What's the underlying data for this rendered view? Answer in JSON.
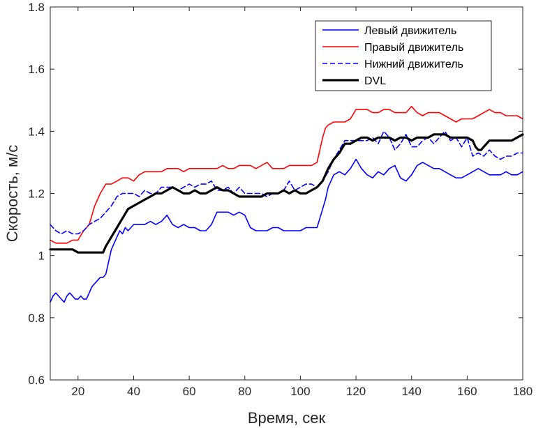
{
  "chart_data": {
    "type": "line",
    "xlabel": "Время, сек",
    "ylabel": "Скорость, м/с",
    "xlim": [
      10,
      180
    ],
    "ylim": [
      0.6,
      1.8
    ],
    "xticks": [
      20,
      40,
      60,
      80,
      100,
      120,
      140,
      160,
      180
    ],
    "yticks": [
      0.6,
      0.8,
      1,
      1.2,
      1.4,
      1.6,
      1.8
    ],
    "ytick_labels": [
      "0.6",
      "0.8",
      "1",
      "1.2",
      "1.4",
      "1.6",
      "1.8"
    ],
    "grid": false,
    "legend_position": "top-right",
    "series": [
      {
        "name": "Левый движитель",
        "color": "#0000ff",
        "style": "solid",
        "x": [
          10,
          11,
          12,
          13,
          14,
          15,
          16,
          17,
          18,
          19,
          20,
          21,
          22,
          23,
          24,
          25,
          26,
          27,
          28,
          29,
          30,
          31,
          32,
          33,
          34,
          35,
          36,
          37,
          38,
          40,
          42,
          44,
          46,
          48,
          50,
          52,
          54,
          56,
          58,
          60,
          62,
          64,
          66,
          68,
          70,
          72,
          74,
          76,
          78,
          80,
          82,
          84,
          86,
          88,
          90,
          92,
          94,
          96,
          98,
          100,
          102,
          104,
          106,
          107,
          108,
          109,
          110,
          112,
          114,
          116,
          118,
          120,
          122,
          124,
          126,
          128,
          130,
          132,
          134,
          136,
          138,
          140,
          142,
          144,
          146,
          148,
          150,
          152,
          154,
          156,
          158,
          160,
          162,
          164,
          166,
          168,
          170,
          172,
          174,
          176,
          178,
          180
        ],
        "y": [
          0.85,
          0.87,
          0.88,
          0.87,
          0.86,
          0.85,
          0.87,
          0.88,
          0.87,
          0.86,
          0.86,
          0.87,
          0.86,
          0.86,
          0.88,
          0.9,
          0.91,
          0.92,
          0.93,
          0.93,
          0.94,
          0.98,
          1.02,
          1.04,
          1.06,
          1.08,
          1.07,
          1.09,
          1.08,
          1.1,
          1.1,
          1.1,
          1.11,
          1.1,
          1.11,
          1.13,
          1.1,
          1.09,
          1.1,
          1.09,
          1.09,
          1.08,
          1.08,
          1.1,
          1.14,
          1.14,
          1.14,
          1.13,
          1.14,
          1.13,
          1.09,
          1.08,
          1.08,
          1.08,
          1.09,
          1.09,
          1.08,
          1.08,
          1.08,
          1.08,
          1.09,
          1.09,
          1.09,
          1.12,
          1.15,
          1.18,
          1.22,
          1.26,
          1.27,
          1.26,
          1.28,
          1.31,
          1.28,
          1.26,
          1.25,
          1.27,
          1.26,
          1.28,
          1.29,
          1.25,
          1.24,
          1.26,
          1.29,
          1.3,
          1.29,
          1.28,
          1.28,
          1.27,
          1.26,
          1.25,
          1.25,
          1.26,
          1.27,
          1.28,
          1.27,
          1.26,
          1.26,
          1.26,
          1.27,
          1.26,
          1.26,
          1.27
        ],
        "note": ""
      },
      {
        "name": "Правый движитель",
        "color": "#ff0000",
        "style": "solid",
        "x": [
          10,
          12,
          14,
          16,
          18,
          20,
          22,
          24,
          26,
          28,
          30,
          32,
          34,
          36,
          38,
          40,
          42,
          44,
          46,
          48,
          50,
          52,
          54,
          56,
          58,
          60,
          62,
          64,
          66,
          68,
          70,
          72,
          74,
          76,
          78,
          80,
          82,
          84,
          86,
          88,
          90,
          92,
          94,
          96,
          98,
          100,
          102,
          104,
          106,
          107,
          108,
          109,
          110,
          112,
          114,
          116,
          118,
          120,
          122,
          124,
          126,
          128,
          130,
          132,
          134,
          136,
          138,
          140,
          142,
          144,
          146,
          148,
          150,
          152,
          154,
          156,
          158,
          160,
          162,
          164,
          166,
          168,
          170,
          172,
          174,
          176,
          178,
          180
        ],
        "y": [
          1.05,
          1.04,
          1.04,
          1.04,
          1.05,
          1.05,
          1.08,
          1.1,
          1.16,
          1.2,
          1.23,
          1.23,
          1.24,
          1.25,
          1.25,
          1.24,
          1.26,
          1.27,
          1.27,
          1.27,
          1.27,
          1.28,
          1.28,
          1.28,
          1.27,
          1.28,
          1.28,
          1.28,
          1.28,
          1.28,
          1.28,
          1.29,
          1.28,
          1.28,
          1.29,
          1.29,
          1.29,
          1.28,
          1.29,
          1.3,
          1.28,
          1.28,
          1.28,
          1.29,
          1.29,
          1.29,
          1.29,
          1.29,
          1.3,
          1.34,
          1.38,
          1.41,
          1.42,
          1.43,
          1.43,
          1.43,
          1.44,
          1.47,
          1.47,
          1.47,
          1.46,
          1.46,
          1.47,
          1.47,
          1.46,
          1.46,
          1.46,
          1.48,
          1.46,
          1.45,
          1.46,
          1.46,
          1.46,
          1.45,
          1.44,
          1.43,
          1.44,
          1.44,
          1.44,
          1.45,
          1.46,
          1.47,
          1.46,
          1.46,
          1.45,
          1.45,
          1.45,
          1.44
        ]
      },
      {
        "name": "Нижний движитель",
        "color": "#0000ff",
        "style": "dashed",
        "x": [
          10,
          12,
          14,
          16,
          18,
          20,
          22,
          24,
          26,
          28,
          30,
          32,
          34,
          36,
          38,
          40,
          42,
          44,
          46,
          48,
          50,
          52,
          54,
          56,
          58,
          60,
          62,
          64,
          66,
          68,
          70,
          72,
          74,
          76,
          78,
          80,
          82,
          84,
          86,
          88,
          90,
          92,
          94,
          96,
          98,
          100,
          102,
          104,
          106,
          108,
          110,
          112,
          114,
          116,
          118,
          120,
          122,
          124,
          126,
          128,
          130,
          132,
          134,
          136,
          138,
          140,
          142,
          144,
          146,
          148,
          150,
          152,
          154,
          156,
          158,
          160,
          162,
          164,
          166,
          168,
          170,
          172,
          174,
          176,
          178,
          180
        ],
        "y": [
          1.1,
          1.08,
          1.07,
          1.08,
          1.07,
          1.07,
          1.08,
          1.1,
          1.11,
          1.12,
          1.14,
          1.16,
          1.19,
          1.2,
          1.2,
          1.2,
          1.19,
          1.21,
          1.2,
          1.2,
          1.22,
          1.22,
          1.22,
          1.21,
          1.22,
          1.23,
          1.22,
          1.23,
          1.23,
          1.24,
          1.21,
          1.21,
          1.22,
          1.2,
          1.22,
          1.2,
          1.2,
          1.2,
          1.2,
          1.19,
          1.2,
          1.2,
          1.21,
          1.24,
          1.21,
          1.22,
          1.23,
          1.23,
          1.22,
          1.24,
          1.27,
          1.31,
          1.34,
          1.37,
          1.37,
          1.37,
          1.37,
          1.37,
          1.38,
          1.36,
          1.4,
          1.38,
          1.34,
          1.36,
          1.39,
          1.35,
          1.35,
          1.37,
          1.38,
          1.36,
          1.38,
          1.4,
          1.37,
          1.38,
          1.35,
          1.38,
          1.32,
          1.33,
          1.32,
          1.34,
          1.32,
          1.31,
          1.32,
          1.32,
          1.33,
          1.33
        ]
      },
      {
        "name": "DVL",
        "color": "#000000",
        "style": "solid-thick",
        "x": [
          10,
          12,
          14,
          16,
          18,
          20,
          22,
          24,
          26,
          28,
          29,
          30,
          32,
          34,
          36,
          38,
          40,
          42,
          44,
          46,
          48,
          50,
          52,
          54,
          56,
          58,
          60,
          62,
          64,
          66,
          68,
          70,
          72,
          74,
          76,
          78,
          80,
          82,
          84,
          86,
          88,
          90,
          92,
          94,
          96,
          98,
          100,
          102,
          104,
          106,
          108,
          110,
          112,
          114,
          116,
          118,
          120,
          122,
          124,
          126,
          128,
          130,
          132,
          134,
          136,
          138,
          140,
          142,
          144,
          146,
          148,
          150,
          152,
          154,
          156,
          158,
          160,
          162,
          163,
          164,
          165,
          166,
          168,
          170,
          172,
          174,
          176,
          178,
          180
        ],
        "y": [
          1.02,
          1.02,
          1.02,
          1.02,
          1.02,
          1.01,
          1.01,
          1.01,
          1.01,
          1.01,
          1.01,
          1.03,
          1.06,
          1.09,
          1.12,
          1.15,
          1.16,
          1.17,
          1.18,
          1.19,
          1.2,
          1.2,
          1.21,
          1.22,
          1.21,
          1.2,
          1.2,
          1.21,
          1.2,
          1.2,
          1.21,
          1.22,
          1.21,
          1.21,
          1.2,
          1.19,
          1.19,
          1.19,
          1.19,
          1.19,
          1.2,
          1.2,
          1.2,
          1.21,
          1.2,
          1.21,
          1.2,
          1.2,
          1.21,
          1.22,
          1.24,
          1.28,
          1.31,
          1.33,
          1.36,
          1.36,
          1.37,
          1.38,
          1.38,
          1.37,
          1.38,
          1.38,
          1.38,
          1.37,
          1.38,
          1.38,
          1.37,
          1.38,
          1.38,
          1.38,
          1.39,
          1.39,
          1.39,
          1.38,
          1.38,
          1.38,
          1.38,
          1.37,
          1.35,
          1.34,
          1.34,
          1.35,
          1.37,
          1.37,
          1.37,
          1.37,
          1.37,
          1.38,
          1.39
        ]
      }
    ]
  }
}
